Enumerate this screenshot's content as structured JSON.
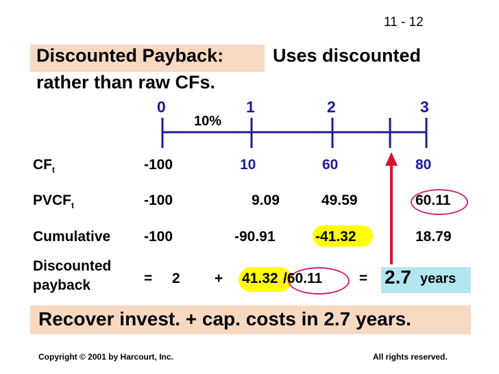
{
  "slide_number": "11 - 12",
  "title": {
    "highlight": "Discounted Payback:",
    "rest": "Uses discounted",
    "line2": "rather than raw CFs."
  },
  "timeline": {
    "periods": [
      "0",
      "1",
      "2",
      "3"
    ],
    "rate": "10%"
  },
  "rows": {
    "cf": {
      "label": "CF",
      "subscript": "t",
      "values": [
        "-100",
        "10",
        "60",
        "80"
      ]
    },
    "pvcf": {
      "label": "PVCF",
      "subscript": "t",
      "values": [
        "-100",
        "9.09",
        "49.59",
        "60.11"
      ]
    },
    "cumulative": {
      "label": "Cumulative",
      "values": [
        "-100",
        "-90.91",
        "-41.32",
        "18.79"
      ]
    }
  },
  "payback": {
    "label_line1": "Discounted",
    "label_line2": "payback",
    "equals": "=",
    "years_whole": "2",
    "plus": "+",
    "numerator": "41.32",
    "fraction": "/60.11",
    "equals2": "=",
    "result": "2.7",
    "result_unit": "years"
  },
  "summary": "Recover invest. + cap. costs in 2.7 years.",
  "footer": {
    "copyright": "Copyright © 2001 by Harcourt, Inc.",
    "rights": "All rights reserved."
  },
  "colors": {
    "title_highlight": "#f7d9c2",
    "timeline_blue": "#1c1c9c",
    "highlight_yellow": "#ffff00",
    "result_box": "#b3e6f0",
    "arrow_red": "#dd1133",
    "oval_magenta": "#cc2277"
  }
}
